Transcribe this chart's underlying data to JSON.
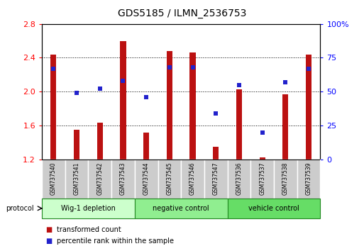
{
  "title": "GDS5185 / ILMN_2536753",
  "samples": [
    "GSM737540",
    "GSM737541",
    "GSM737542",
    "GSM737543",
    "GSM737544",
    "GSM737545",
    "GSM737546",
    "GSM737547",
    "GSM737536",
    "GSM737537",
    "GSM737538",
    "GSM737539"
  ],
  "transformed_count": [
    2.44,
    1.55,
    1.63,
    2.6,
    1.52,
    2.48,
    2.46,
    1.35,
    2.03,
    1.22,
    1.97,
    2.44
  ],
  "percentile_rank": [
    67,
    49,
    52,
    58,
    46,
    68,
    68,
    34,
    55,
    20,
    57,
    67
  ],
  "groups": [
    {
      "label": "Wig-1 depletion",
      "start": 0,
      "end": 4
    },
    {
      "label": "negative control",
      "start": 4,
      "end": 8
    },
    {
      "label": "vehicle control",
      "start": 8,
      "end": 12
    }
  ],
  "group_colors": [
    "#ccffcc",
    "#90ee90",
    "#66dd66"
  ],
  "ylim_left": [
    1.2,
    2.8
  ],
  "ylim_right": [
    0,
    100
  ],
  "yticks_left": [
    1.2,
    1.6,
    2.0,
    2.4,
    2.8
  ],
  "yticks_right": [
    0,
    25,
    50,
    75,
    100
  ],
  "bar_color": "#bb1111",
  "dot_color": "#2222cc",
  "bar_width": 0.25,
  "bar_baseline": 1.2,
  "protocol_label": "protocol",
  "sample_box_color": "#cccccc"
}
